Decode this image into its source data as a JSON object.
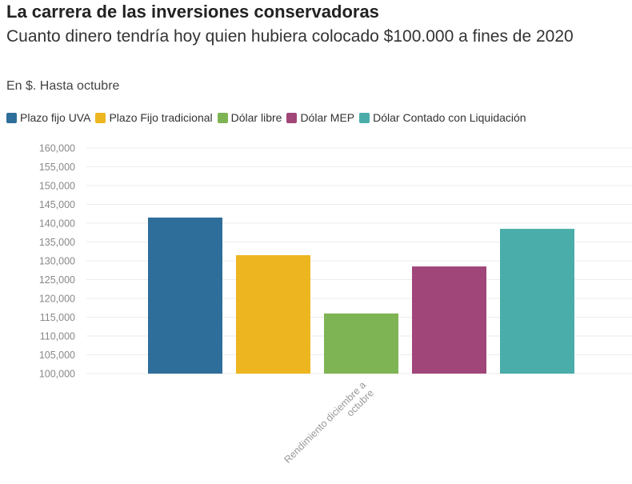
{
  "header": {
    "title": "La carrera de las inversiones conservadoras",
    "subtitle": "Cuanto dinero tendría hoy quien hubiera colocado $100.000 a fines de 2020",
    "note": "En $. Hasta octubre"
  },
  "chart_data": {
    "type": "bar",
    "categories": [
      "Rendimiento diciembre a octubre"
    ],
    "category_label_lines": [
      "Rendimiento diciembre a",
      "octubre"
    ],
    "series": [
      {
        "name": "Plazo fijo UVA",
        "color": "#2e6e9a",
        "values": [
          141500
        ]
      },
      {
        "name": "Plazo Fijo tradicional",
        "color": "#edb51f",
        "values": [
          131500
        ]
      },
      {
        "name": "Dólar libre",
        "color": "#7fb455",
        "values": [
          116000
        ]
      },
      {
        "name": "Dólar MEP",
        "color": "#a14679",
        "values": [
          128500
        ]
      },
      {
        "name": "Dólar Contado con Liquidación",
        "color": "#4aada9",
        "values": [
          138500
        ]
      }
    ],
    "ylim": [
      100000,
      160000
    ],
    "yticks": [
      "100,000",
      "105,000",
      "110,000",
      "115,000",
      "120,000",
      "125,000",
      "130,000",
      "135,000",
      "140,000",
      "145,000",
      "150,000",
      "155,000",
      "160,000"
    ],
    "ytick_values": [
      100000,
      105000,
      110000,
      115000,
      120000,
      125000,
      130000,
      135000,
      140000,
      145000,
      150000,
      155000,
      160000
    ],
    "grid": true,
    "legend_position": "top-left",
    "xlabel": "",
    "ylabel": ""
  }
}
